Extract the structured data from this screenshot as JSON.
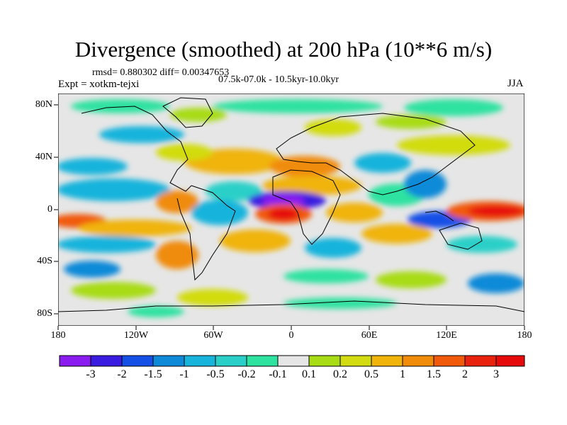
{
  "figure": {
    "title": "Divergence (smoothed) at 200 hPa (10**6 m/s)",
    "stats": "rmsd= 0.880302 diff= 0.00347653",
    "experiment": "Expt = xotkm-tejxi",
    "period": "07.5k-07.0k - 10.5kyr-10.0kyr",
    "season": "JJA"
  },
  "axes": {
    "lat_labels": [
      "80N",
      "40N",
      "0",
      "40S",
      "80S"
    ],
    "lon_labels": [
      "180",
      "120W",
      "60W",
      "0",
      "60E",
      "120E",
      "180"
    ]
  },
  "colorbar": {
    "labels": [
      "-3",
      "-2",
      "-1.5",
      "-1",
      "-0.5",
      "-0.2",
      "-0.1",
      "0.1",
      "0.2",
      "0.5",
      "1",
      "1.5",
      "2",
      "3"
    ],
    "colors": [
      "#8a1cf0",
      "#3a1ce0",
      "#1450e6",
      "#0f8ad8",
      "#19b4dc",
      "#2ad0c8",
      "#2ee2a0",
      "#e6e6e6",
      "#a8dc14",
      "#d2dc10",
      "#f0b40a",
      "#f08c0a",
      "#f05a0a",
      "#e8220c",
      "#e60a0a"
    ]
  },
  "chart_data": {
    "type": "heatmap",
    "title": "Divergence (smoothed) at 200 hPa (10**6 m/s)",
    "levels": [
      -3,
      -2,
      -1.5,
      -1,
      -0.5,
      -0.2,
      -0.1,
      0.1,
      0.2,
      0.5,
      1,
      1.5,
      2,
      3
    ],
    "lon_range": [
      -180,
      180
    ],
    "lat_range": [
      -90,
      90
    ],
    "features": [
      {
        "name": "equatorial-atlantic-convergence",
        "lon": -5,
        "lat": 8,
        "value": -3
      },
      {
        "name": "gulf-of-guinea-divergence",
        "lon": -5,
        "lat": -2,
        "value": 3
      },
      {
        "name": "west-pacific-divergence",
        "lon": 150,
        "lat": -2,
        "value": 3
      },
      {
        "name": "indonesia-convergence",
        "lon": 120,
        "lat": -5,
        "value": -1.5
      },
      {
        "name": "tropical-eastpac-divergence",
        "lon": -170,
        "lat": -5,
        "value": 2
      }
    ]
  }
}
